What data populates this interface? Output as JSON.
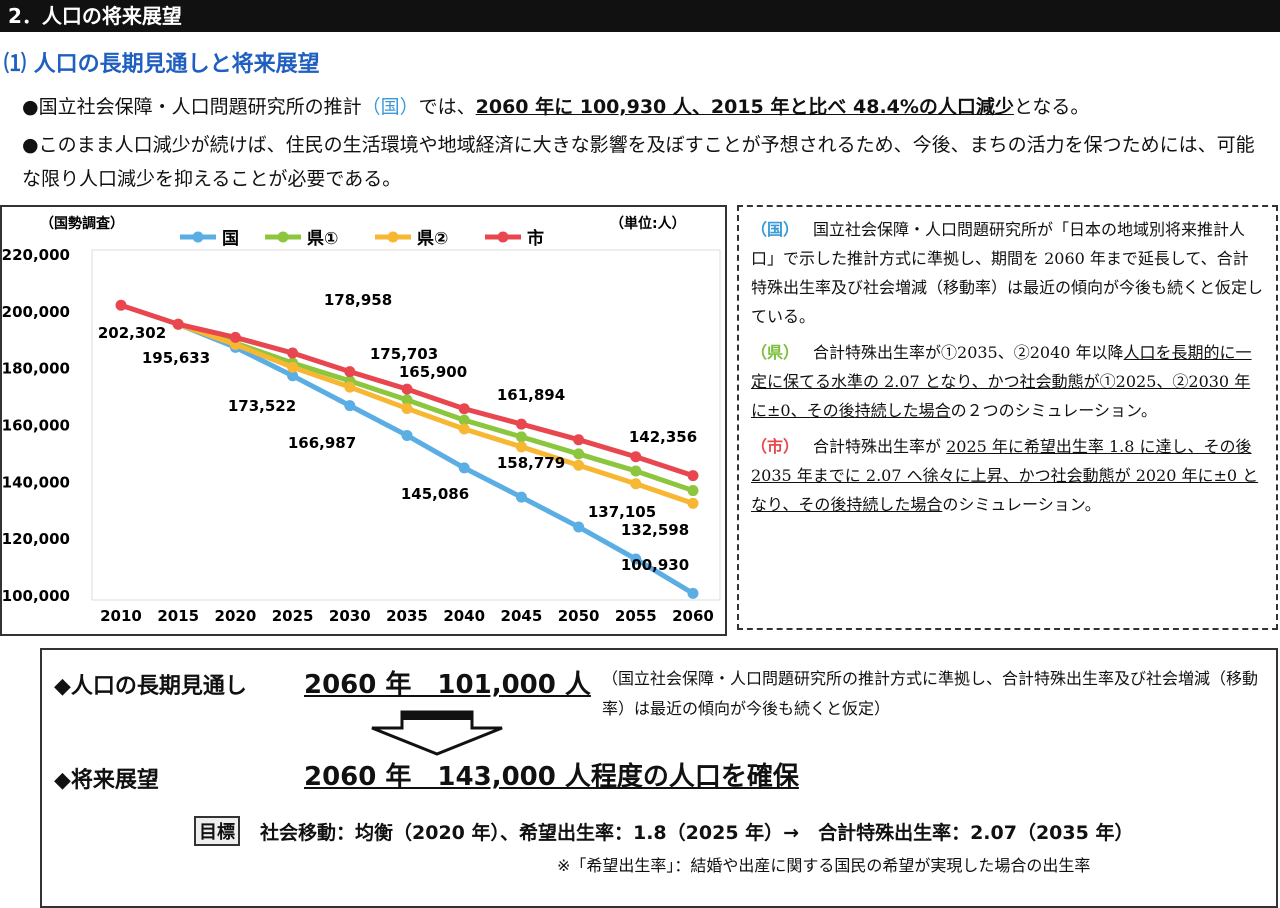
{
  "header": {
    "title": "2．人口の将来展望"
  },
  "section": {
    "title": "⑴ 人口の長期見通しと将来展望"
  },
  "bullets": [
    {
      "parts": [
        "●国立社会保障・人口問題研究所の推計",
        "（国）",
        "では、",
        "2060 年に 100,930 人、2015 年と比べ 48.4%の人口減少",
        "となる。"
      ]
    },
    {
      "parts": [
        "●このまま人口減少が続けば、住民の生活環境や地域経済に大きな影響を及ぼすことが予想されるため、今後、まちの活力を保つためには、可能な限り人口減少を抑えることが必要である。"
      ]
    }
  ],
  "chart_data": {
    "type": "line",
    "annotations": [
      "（国勢調査）",
      "（単位:人）"
    ],
    "categories": [
      "2010",
      "2015",
      "2020",
      "2025",
      "2030",
      "2035",
      "2040",
      "2045",
      "2050",
      "2055",
      "2060"
    ],
    "ylim": [
      100000,
      220000
    ],
    "yticks": [
      {
        "value": 100000,
        "label": "100,000"
      },
      {
        "value": 120000,
        "label": "120,000"
      },
      {
        "value": 140000,
        "label": "140,000"
      },
      {
        "value": 160000,
        "label": "160,000"
      },
      {
        "value": 180000,
        "label": "180,000"
      },
      {
        "value": 200000,
        "label": "200,000"
      },
      {
        "value": 220000,
        "label": "220,000"
      }
    ],
    "grid": false,
    "series": [
      {
        "name": "国",
        "color": "#5aaee3",
        "values": [
          null,
          195633,
          187500,
          177500,
          166987,
          156500,
          145086,
          134800,
          124300,
          113000,
          100930
        ],
        "value_labels": [
          null,
          null,
          null,
          null,
          "166,987",
          null,
          "145,086",
          null,
          null,
          null,
          "100,930"
        ]
      },
      {
        "name": "県①",
        "color": "#8cc63f",
        "values": [
          null,
          195633,
          189000,
          182000,
          175703,
          169000,
          161894,
          156000,
          150000,
          144000,
          137105
        ],
        "value_labels": [
          null,
          null,
          null,
          null,
          "175,703",
          null,
          "161,894",
          null,
          null,
          null,
          "137,105"
        ]
      },
      {
        "name": "県②",
        "color": "#f7b733",
        "values": [
          null,
          195633,
          188500,
          180500,
          173522,
          166000,
          158779,
          152500,
          146000,
          139500,
          132598
        ],
        "value_labels": [
          null,
          null,
          null,
          null,
          "173,522",
          null,
          "158,779",
          null,
          null,
          null,
          "132,598"
        ]
      },
      {
        "name": "市",
        "color": "#e8474f",
        "values": [
          202302,
          195633,
          191000,
          185500,
          178958,
          172800,
          165900,
          160500,
          155000,
          149000,
          142356
        ],
        "value_labels": [
          "202,302",
          "195,633",
          null,
          null,
          "178,958",
          null,
          "165,900",
          null,
          null,
          null,
          "142,356"
        ]
      }
    ]
  },
  "notes": [
    {
      "tag": "（国）",
      "color": "#3a9ad9",
      "parts": [
        "国立社会保障・人口問題研究所が「日本の地域別将来推計人口」で示した推計方式に準拠し、期間を 2060 年まで延長して、合計特殊出生率及び社会増減（移動率）は最近の傾向が今後も続くと仮定している。"
      ]
    },
    {
      "tag": "（県）",
      "color": "#7cbf3a",
      "parts": [
        "合計特殊出生率が①2035、②2040 年以降",
        "人口を長期的に一定に保てる水準の 2.07 となり、かつ社会動態が①2025、②2030 年に±0、その後持続した場合",
        "の２つのシミュレーション。"
      ]
    },
    {
      "tag": "（市）",
      "color": "#e8474f",
      "parts": [
        "合計特殊出生率が ",
        "2025 年に希望出生率 1.8 に達し、その後 2035 年までに 2.07 へ徐々に上昇、かつ社会動態が 2020 年に±0 となり、その後持続した場合",
        "のシミュレーション。"
      ]
    }
  ],
  "summary": {
    "outlook_label": "◆人口の長期見通し",
    "outlook_value": "2060 年　101,000 人",
    "outlook_note": "（国立社会保障・人口問題研究所の推計方式に準拠し、合計特殊出生率及び社会増減（移動率）は最近の傾向が今後も続くと仮定）",
    "vision_label": "◆将来展望",
    "vision_value": "2060 年　143,000 人程度の人口を確保",
    "target_tag": "目標",
    "target_text": "社会移動：均衡（2020 年）、希望出生率：1.8（2025 年）→　合計特殊出生率：2.07（2035 年）",
    "footnote": "※「希望出生率」：結婚や出産に関する国民の希望が実現した場合の出生率"
  }
}
